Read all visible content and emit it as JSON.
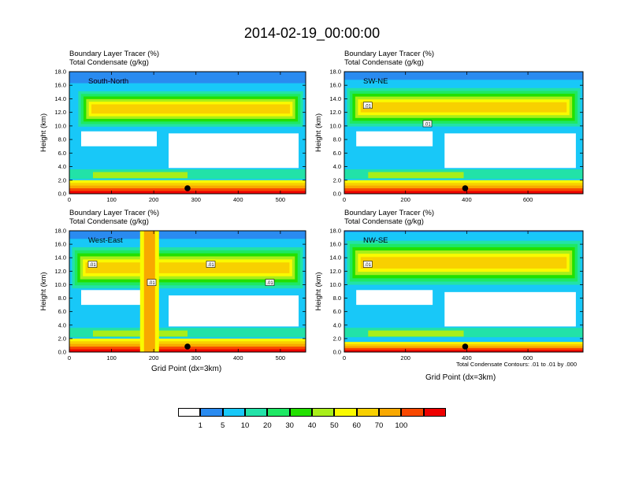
{
  "figure": {
    "title": "2014-02-19_00:00:00",
    "contour_note": "Total Condensate Contours: .01 to .01 by .000",
    "x_axis_title": "Grid Point (dx=3km)",
    "y_axis_title": "Height (km)",
    "panel_title_line1": "Boundary Layer Tracer    (%)",
    "panel_title_line2": "Total Condensate    (g/kg)"
  },
  "colors": {
    "scale": [
      "#ffffff",
      "#2a8bf0",
      "#18c8f8",
      "#22e2a8",
      "#1ee864",
      "#22e000",
      "#a8ee1a",
      "#fafa00",
      "#f8d000",
      "#f8a800",
      "#f84800",
      "#ee0000"
    ],
    "contour": "#000000",
    "marker": "#000000"
  },
  "colorbar": {
    "labels": [
      "1",
      "5",
      "10",
      "20",
      "30",
      "40",
      "50",
      "60",
      "70",
      "100"
    ]
  },
  "chart_data": [
    {
      "type": "heatmap",
      "cross_section": "South-North",
      "xlim": [
        0,
        560
      ],
      "ylim": [
        0.0,
        18.0
      ],
      "xticks": [
        "0",
        "100",
        "200",
        "300",
        "400",
        "500"
      ],
      "yticks": [
        "0.0",
        "2.0",
        "4.0",
        "6.0",
        "8.0",
        "10.0",
        "12.0",
        "14.0",
        "16.0",
        "18.0"
      ],
      "marker_x": 280,
      "fields": {
        "upper_layer": {
          "x_start": 15,
          "x_end": 560,
          "top_km": 15.5,
          "bottom_km": 9.5,
          "max_pct": 60
        },
        "boundary_layer": {
          "top_km": 2.0,
          "max_pct": 100
        }
      },
      "contour_labels": []
    },
    {
      "type": "heatmap",
      "cross_section": "SW-NE",
      "xlim": [
        0,
        780
      ],
      "ylim": [
        0.0,
        18.0
      ],
      "xticks": [
        "0",
        "200",
        "400",
        "600"
      ],
      "yticks": [
        "0.0",
        "2.0",
        "4.0",
        "6.0",
        "8.0",
        "10.0",
        "12.0",
        "14.0",
        "16.0",
        "18.0"
      ],
      "marker_x": 395,
      "fields": {
        "upper_layer": {
          "x_start": 0,
          "x_end": 780,
          "top_km": 16.0,
          "bottom_km": 9.5,
          "max_pct": 70
        },
        "boundary_layer": {
          "top_km": 2.0,
          "max_pct": 100
        }
      },
      "contour_labels": [
        ".01",
        ".01"
      ]
    },
    {
      "type": "heatmap",
      "cross_section": "West-East",
      "xlim": [
        0,
        560
      ],
      "ylim": [
        0.0,
        18.0
      ],
      "xticks": [
        "0",
        "100",
        "200",
        "300",
        "400",
        "500"
      ],
      "yticks": [
        "0.0",
        "2.0",
        "4.0",
        "6.0",
        "8.0",
        "10.0",
        "12.0",
        "14.0",
        "16.0",
        "18.0"
      ],
      "marker_x": 280,
      "fields": {
        "upper_layer": {
          "x_start": 0,
          "x_end": 560,
          "top_km": 16.0,
          "bottom_km": 9.0,
          "max_pct": 70
        },
        "boundary_layer": {
          "top_km": 2.0,
          "max_pct": 100
        },
        "convective_column_x": 190
      },
      "contour_labels": [
        ".01",
        ".01",
        ".01",
        ".01"
      ]
    },
    {
      "type": "heatmap",
      "cross_section": "NW-SE",
      "xlim": [
        0,
        780
      ],
      "ylim": [
        0.0,
        18.0
      ],
      "xticks": [
        "0",
        "200",
        "400",
        "600"
      ],
      "yticks": [
        "0.0",
        "2.0",
        "4.0",
        "6.0",
        "8.0",
        "10.0",
        "12.0",
        "14.0",
        "16.0",
        "18.0"
      ],
      "marker_x": 395,
      "fields": {
        "upper_layer": {
          "x_start": 0,
          "x_end": 780,
          "top_km": 17.0,
          "bottom_km": 9.5,
          "max_pct": 60
        },
        "boundary_layer": {
          "top_km": 1.5,
          "max_pct": 100
        }
      },
      "contour_labels": [
        ".01"
      ]
    }
  ]
}
